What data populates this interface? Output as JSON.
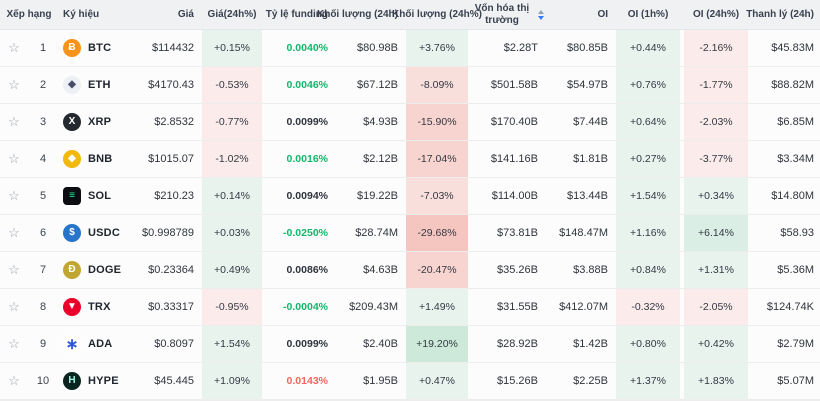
{
  "colors": {
    "green_text": "#12b76a",
    "red_text": "#f2655c",
    "sort_active": "#2e7cf6",
    "header_bg": "#eff1f3",
    "positive_cell": "#e8f3ee",
    "negative_cell": "#fbeceb"
  },
  "ui": {
    "star_glyph": "☆"
  },
  "table": {
    "columns": [
      "Xếp hạng",
      "Ký hiệu",
      "Giá",
      "Giá(24h%)",
      "Tỷ lệ funding",
      "Khối lượng (24h)",
      "Khối lượng (24h%)",
      "Vốn hóa thị trường",
      "OI",
      "OI (1h%)",
      "OI (24h%)",
      "Thanh lý (24h)"
    ],
    "sorted_column": "Vốn hóa thị trường",
    "sort_direction": "desc",
    "rows": [
      {
        "rank": "1",
        "name": "BTC",
        "icon": {
          "glyph": "Ƀ",
          "bg": "#f7931a",
          "fg": "#ffffff",
          "shape": "circle"
        },
        "price": "$114432",
        "chg24h": "+0.15%",
        "funding": "0.0040%",
        "funding_color": "g",
        "vol24h": "$80.98B",
        "vol24hPct": "+3.76%",
        "mcap": "$2.28T",
        "oi": "$80.85B",
        "oi1hPct": "+0.44%",
        "oi24hPct": "-2.16%",
        "liq24h": "$45.83M"
      },
      {
        "rank": "2",
        "name": "ETH",
        "icon": {
          "glyph": "◆",
          "bg": "#edf0f4",
          "fg": "#474d66",
          "shape": "circle"
        },
        "price": "$4170.43",
        "chg24h": "-0.53%",
        "funding": "0.0046%",
        "funding_color": "g",
        "vol24h": "$67.12B",
        "vol24hPct": "-8.09%",
        "mcap": "$501.58B",
        "oi": "$54.97B",
        "oi1hPct": "+0.76%",
        "oi24hPct": "-1.77%",
        "liq24h": "$88.82M"
      },
      {
        "rank": "3",
        "name": "XRP",
        "icon": {
          "glyph": "X",
          "bg": "#23292f",
          "fg": "#ffffff",
          "shape": "circle"
        },
        "price": "$2.8532",
        "chg24h": "-0.77%",
        "funding": "0.0099%",
        "funding_color": "n",
        "vol24h": "$4.93B",
        "vol24hPct": "-15.90%",
        "mcap": "$170.40B",
        "oi": "$7.44B",
        "oi1hPct": "+0.64%",
        "oi24hPct": "-2.03%",
        "liq24h": "$6.85M"
      },
      {
        "rank": "4",
        "name": "BNB",
        "icon": {
          "glyph": "◆",
          "bg": "#f0b90b",
          "fg": "#ffffff",
          "shape": "circle"
        },
        "price": "$1015.07",
        "chg24h": "-1.02%",
        "funding": "0.0016%",
        "funding_color": "g",
        "vol24h": "$2.12B",
        "vol24hPct": "-17.04%",
        "mcap": "$141.16B",
        "oi": "$1.81B",
        "oi1hPct": "+0.27%",
        "oi24hPct": "-3.77%",
        "liq24h": "$3.34M"
      },
      {
        "rank": "5",
        "name": "SOL",
        "icon": {
          "glyph": "≡",
          "bg": "#0b0d12",
          "fg": "#19fb9b",
          "shape": "square"
        },
        "price": "$210.23",
        "chg24h": "+0.14%",
        "funding": "0.0094%",
        "funding_color": "n",
        "vol24h": "$19.22B",
        "vol24hPct": "-7.03%",
        "mcap": "$114.00B",
        "oi": "$13.44B",
        "oi1hPct": "+1.54%",
        "oi24hPct": "+0.34%",
        "liq24h": "$14.80M"
      },
      {
        "rank": "6",
        "name": "USDC",
        "icon": {
          "glyph": "$",
          "bg": "#2775ca",
          "fg": "#ffffff",
          "shape": "circle"
        },
        "price": "$0.998789",
        "chg24h": "+0.03%",
        "funding": "-0.0250%",
        "funding_color": "g",
        "vol24h": "$28.74M",
        "vol24hPct": "-29.68%",
        "mcap": "$73.81B",
        "oi": "$148.47M",
        "oi1hPct": "+1.16%",
        "oi24hPct": "+6.14%",
        "liq24h": "$58.93"
      },
      {
        "rank": "7",
        "name": "DOGE",
        "icon": {
          "glyph": "Ð",
          "bg": "#c2a633",
          "fg": "#ffffff",
          "shape": "circle"
        },
        "price": "$0.23364",
        "chg24h": "+0.49%",
        "funding": "0.0086%",
        "funding_color": "n",
        "vol24h": "$4.63B",
        "vol24hPct": "-20.47%",
        "mcap": "$35.26B",
        "oi": "$3.88B",
        "oi1hPct": "+0.84%",
        "oi24hPct": "+1.31%",
        "liq24h": "$5.36M"
      },
      {
        "rank": "8",
        "name": "TRX",
        "icon": {
          "glyph": "▼",
          "bg": "#eb0029",
          "fg": "#ffffff",
          "shape": "circle"
        },
        "price": "$0.33317",
        "chg24h": "-0.95%",
        "funding": "-0.0004%",
        "funding_color": "g",
        "vol24h": "$209.43M",
        "vol24hPct": "+1.49%",
        "mcap": "$31.55B",
        "oi": "$412.07M",
        "oi1hPct": "-0.32%",
        "oi24hPct": "-2.05%",
        "liq24h": "$124.74K"
      },
      {
        "rank": "9",
        "name": "ADA",
        "icon": {
          "glyph": "∗",
          "bg": "#ffffff",
          "fg": "#2a52d8",
          "shape": "circle",
          "glyph_size": "15px"
        },
        "price": "$0.8097",
        "chg24h": "+1.54%",
        "funding": "0.0099%",
        "funding_color": "n",
        "vol24h": "$2.40B",
        "vol24hPct": "+19.20%",
        "mcap": "$28.92B",
        "oi": "$1.42B",
        "oi1hPct": "+0.80%",
        "oi24hPct": "+0.42%",
        "liq24h": "$2.79M"
      },
      {
        "rank": "10",
        "name": "HYPE",
        "icon": {
          "glyph": "H",
          "bg": "#07251f",
          "fg": "#97fbe4",
          "shape": "circle"
        },
        "price": "$45.445",
        "chg24h": "+1.09%",
        "funding": "0.0143%",
        "funding_color": "r",
        "vol24h": "$1.95B",
        "vol24hPct": "+0.47%",
        "mcap": "$15.26B",
        "oi": "$2.25B",
        "oi1hPct": "+1.37%",
        "oi24hPct": "+1.83%",
        "liq24h": "$5.07M"
      }
    ]
  }
}
